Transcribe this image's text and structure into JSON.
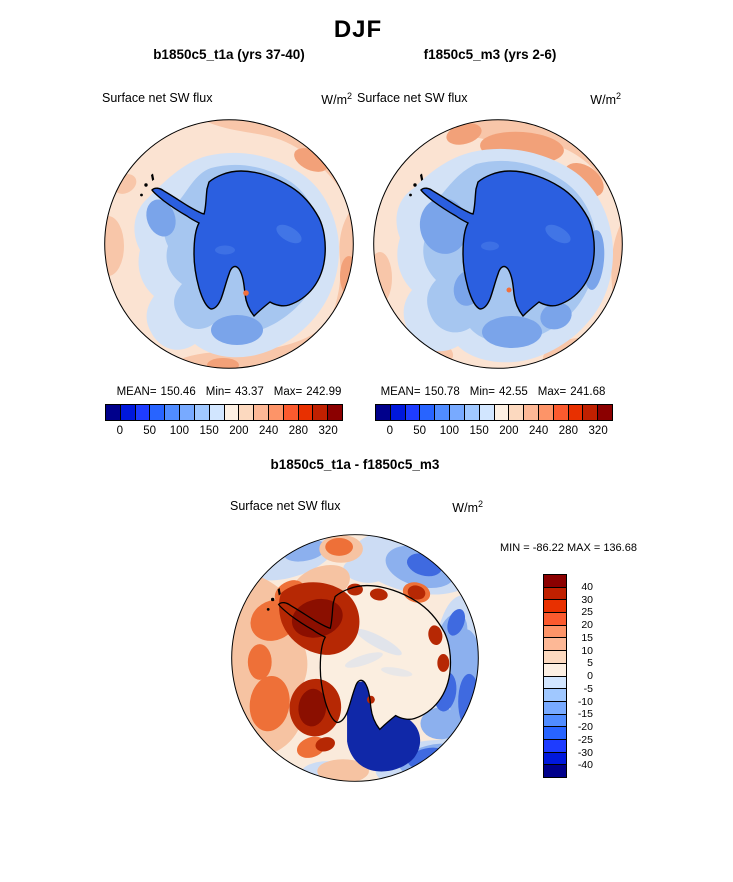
{
  "figure_title": "DJF",
  "panels": {
    "a": {
      "title": "b1850c5_t1a (yrs 37-40)",
      "field": "Surface net SW flux",
      "units_base": "W/m",
      "units_exp": "2",
      "stats": {
        "mean_label": "MEAN=",
        "mean": "150.46",
        "min_label": "Min=",
        "min": "43.37",
        "max_label": "Max=",
        "max": "242.99"
      }
    },
    "b": {
      "title": "f1850c5_m3 (yrs 2-6)",
      "field": "Surface net SW flux",
      "units_base": "W/m",
      "units_exp": "2",
      "stats": {
        "mean_label": "MEAN=",
        "mean": "150.78",
        "min_label": "Min=",
        "min": "42.55",
        "max_label": "Max=",
        "max": "241.68"
      }
    },
    "diff": {
      "title": "b1850c5_t1a - f1850c5_m3",
      "field": "Surface net SW flux",
      "units_base": "W/m",
      "units_exp": "2",
      "minmax": "MIN = -86.22 MAX = 136.68"
    }
  },
  "colorbar_main": {
    "colors": [
      "#00008b",
      "#0018dc",
      "#1e3cff",
      "#2864ff",
      "#508cff",
      "#78aaff",
      "#a0c8ff",
      "#d2e6ff",
      "#fdf0e3",
      "#fcd9bf",
      "#fdb896",
      "#fd9468",
      "#fb5a2e",
      "#e83000",
      "#c02000",
      "#8b0000"
    ],
    "tick_labels": [
      "0",
      "50",
      "100",
      "150",
      "200",
      "240",
      "280",
      "320"
    ],
    "tick_positions": [
      1,
      3,
      5,
      7,
      9,
      11,
      13,
      15
    ]
  },
  "colorbar_diff": {
    "colors": [
      "#8b0000",
      "#c02000",
      "#e83000",
      "#fb5a2e",
      "#fd9468",
      "#fdb896",
      "#fcd9bf",
      "#fdf0e3",
      "#d2e6ff",
      "#a0c8ff",
      "#78aaff",
      "#508cff",
      "#2864ff",
      "#1e3cff",
      "#0018dc",
      "#00008b"
    ],
    "tick_labels": [
      "40",
      "30",
      "25",
      "20",
      "15",
      "10",
      "5",
      "0",
      "-5",
      "-10",
      "-15",
      "-20",
      "-25",
      "-30",
      "-40"
    ],
    "tick_positions": [
      1,
      2,
      3,
      4,
      5,
      6,
      7,
      8,
      9,
      10,
      11,
      12,
      13,
      14,
      15
    ]
  },
  "palette": {
    "ocean_peach": "#fbe3d2",
    "salmon": "#f8c6a9",
    "salmon_deep": "#f2a179",
    "blue_pale": "#d3e2f6",
    "blue_light": "#a6c6f0",
    "blue_deep": "#7aa4ea",
    "continent_blue": "#2b5fe0",
    "continent_hi": "#4a7ce8",
    "spot_orange": "#f2703c",
    "diff_bg": "#faeadb",
    "diff_land": "#fbeee0",
    "diff_blue_pale": "#ccdcf4",
    "diff_blue_mid": "#8cb0ee",
    "diff_blue_strong": "#3f6ae0",
    "diff_navy": "#1028a8",
    "diff_red_pale": "#f6c3a2",
    "diff_red_mid": "#ee7038",
    "diff_red_dark": "#b62804",
    "diff_maroon": "#8b0f00",
    "coastline": "#000000"
  },
  "chart_data": [
    {
      "type": "heatmap",
      "projection": "polar_stereographic_south",
      "season": "DJF",
      "title": "b1850c5_t1a (yrs 37-40)",
      "field": "Surface net SW flux",
      "units": "W/m2",
      "mean": 150.46,
      "min": 43.37,
      "max": 242.99,
      "contour_levels": [
        0,
        25,
        50,
        75,
        100,
        125,
        150,
        175,
        200,
        220,
        240,
        260,
        280,
        300,
        320
      ],
      "colorbar_tick_labels": [
        0,
        50,
        100,
        150,
        200,
        240,
        280,
        320
      ],
      "palette": "blue_to_red_16",
      "legend_position": "below"
    },
    {
      "type": "heatmap",
      "projection": "polar_stereographic_south",
      "season": "DJF",
      "title": "f1850c5_m3 (yrs 2-6)",
      "field": "Surface net SW flux",
      "units": "W/m2",
      "mean": 150.78,
      "min": 42.55,
      "max": 241.68,
      "contour_levels": [
        0,
        25,
        50,
        75,
        100,
        125,
        150,
        175,
        200,
        220,
        240,
        260,
        280,
        300,
        320
      ],
      "colorbar_tick_labels": [
        0,
        50,
        100,
        150,
        200,
        240,
        280,
        320
      ],
      "palette": "blue_to_red_16",
      "legend_position": "below"
    },
    {
      "type": "heatmap",
      "projection": "polar_stereographic_south",
      "season": "DJF",
      "title": "b1850c5_t1a - f1850c5_m3",
      "field": "Surface net SW flux",
      "units": "W/m2",
      "min": -86.22,
      "max": 136.68,
      "contour_levels": [
        -40,
        -30,
        -25,
        -20,
        -15,
        -10,
        -5,
        0,
        5,
        10,
        15,
        20,
        25,
        30,
        40
      ],
      "palette": "red_to_blue_16",
      "legend_position": "right"
    }
  ]
}
